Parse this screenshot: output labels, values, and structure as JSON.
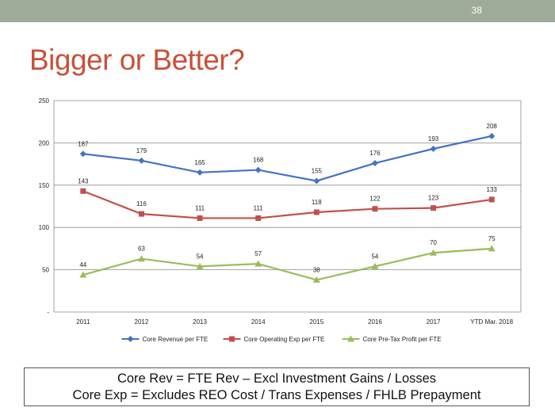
{
  "slide": {
    "number": "38",
    "title": "Bigger or Better?"
  },
  "footnote": {
    "line1": "Core Rev = FTE Rev – Excl Investment Gains / Losses",
    "line2": "Core Exp = Excludes REO Cost / Trans Expenses / FHLB Prepayment"
  },
  "colors": {
    "top_bar": "#9eab99",
    "title": "#c9503a"
  },
  "chart_data": {
    "type": "line",
    "categories": [
      "2011",
      "2012",
      "2013",
      "2014",
      "2015",
      "2016",
      "2017",
      "YTD Mar. 2018"
    ],
    "ylim": [
      0,
      250
    ],
    "yticks": [
      0,
      50,
      100,
      150,
      200,
      250
    ],
    "ytick_labels": [
      "-",
      "50",
      "100",
      "150",
      "200",
      "250"
    ],
    "grid": true,
    "legend_position": "bottom",
    "series": [
      {
        "name": "Core Revenue per FTE",
        "color": "#4472c4",
        "marker": "diamond",
        "values": [
          187,
          179,
          165,
          168,
          155,
          176,
          193,
          208
        ]
      },
      {
        "name": "Core Operating Exp per FTE",
        "color": "#c0504d",
        "marker": "square",
        "values": [
          143,
          116,
          111,
          111,
          118,
          122,
          123,
          133
        ]
      },
      {
        "name": "Core Pre-Tax Profit per FTE",
        "color": "#9bbb59",
        "marker": "triangle",
        "values": [
          44,
          63,
          54,
          57,
          38,
          54,
          70,
          75
        ]
      }
    ]
  }
}
